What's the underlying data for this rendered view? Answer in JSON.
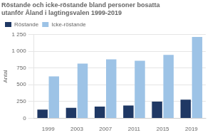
{
  "chart_data": {
    "type": "bar",
    "title": [
      "Röstande och icke-röstande bland personer bosatta",
      "utanför Åland i lagtingsvalen 1999-2019"
    ],
    "y_label": "Antal",
    "categories": [
      "1999",
      "2003",
      "2007",
      "2011",
      "2015",
      "2019"
    ],
    "series": [
      {
        "name": "Röstande",
        "color": "#1f3864",
        "values": [
          130,
          155,
          175,
          190,
          248,
          278
        ]
      },
      {
        "name": "Icke-röstande",
        "color": "#9dc3e6",
        "values": [
          625,
          815,
          880,
          858,
          945,
          1215
        ]
      }
    ],
    "ylim": [
      0,
      1250
    ],
    "yticks": [
      0,
      250,
      500,
      750,
      {
        "value": 1000,
        "label": "1 000"
      },
      {
        "value": 1250,
        "label": "1 250"
      }
    ],
    "grid": true,
    "legend": "upper left"
  }
}
